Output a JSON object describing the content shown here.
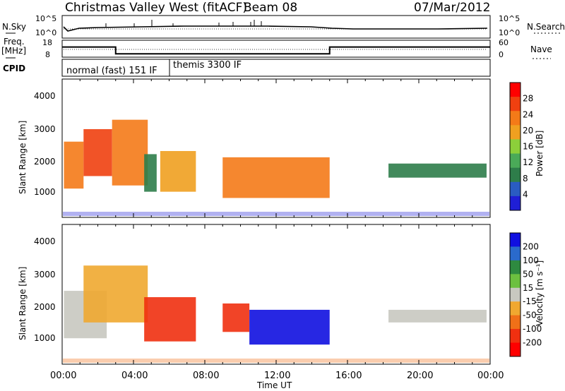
{
  "header": {
    "title": "Christmas Valley West (fitACF)",
    "beam": "Beam 08",
    "date": "07/Mar/2012"
  },
  "noise_panel": {
    "left_label": "N.Sky",
    "right_label": "N.Search",
    "left_ticks": [
      "10^5",
      "10^0"
    ],
    "right_ticks": [
      "10^5",
      "10^0"
    ]
  },
  "freq_panel": {
    "left_label_1": "Freq.",
    "left_label_2": "[MHz]",
    "right_label": "Nave",
    "left_ticks": [
      "18",
      "8"
    ],
    "right_ticks": [
      "60",
      "0"
    ]
  },
  "cpid_panel": {
    "label": "CPID",
    "modes": [
      {
        "label": "normal (fast) 151 IF",
        "start_hour": 0,
        "end_hour": 6
      },
      {
        "label": "themis 3300 IF",
        "start_hour": 6,
        "end_hour": 24
      }
    ]
  },
  "power_panel": {
    "ylabel": "Slant Range [km]",
    "yticks": [
      "4000",
      "3000",
      "2000",
      "1000"
    ],
    "colorbar_label": "Power [dB]",
    "colorbar_ticks": [
      "28",
      "24",
      "20",
      "16",
      "12",
      "8",
      "4"
    ],
    "colors": [
      "#1f1fd6",
      "#2a5cc2",
      "#2e7d4a",
      "#4aaa58",
      "#8ccf3a",
      "#f0a020",
      "#f47a18",
      "#f04010",
      "#ff0000"
    ]
  },
  "velocity_panel": {
    "ylabel": "Slant Range [km]",
    "yticks": [
      "4000",
      "3000",
      "2000",
      "1000"
    ],
    "colorbar_label": "Velocity [m s⁻¹]",
    "colorbar_ticks": [
      "200",
      "100",
      "50",
      "15",
      "-15",
      "-50",
      "-100",
      "-200"
    ],
    "colors": [
      "#1010e0",
      "#2a6acc",
      "#2e8a40",
      "#6cc040",
      "#c8c8c0",
      "#f0a830",
      "#f07018",
      "#f03010",
      "#ff0000"
    ]
  },
  "x_axis": {
    "label": "Time UT",
    "ticks": [
      "00:00",
      "04:00",
      "08:00",
      "12:00",
      "16:00",
      "20:00",
      "00:00"
    ]
  },
  "chart_data": {
    "type": "heatmap",
    "x_range_hours": [
      0,
      24
    ],
    "y_range_km": [
      180,
      4600
    ],
    "power_patches": [
      {
        "t0": 0.1,
        "t1": 1.2,
        "r0": 1100,
        "r1": 2600,
        "db": 22
      },
      {
        "t0": 1.2,
        "t1": 2.8,
        "r0": 1500,
        "r1": 3000,
        "db": 26
      },
      {
        "t0": 2.8,
        "t1": 4.8,
        "r0": 1200,
        "r1": 3300,
        "db": 25
      },
      {
        "t0": 4.6,
        "t1": 5.3,
        "r0": 1000,
        "r1": 2200,
        "db": 8
      },
      {
        "t0": 5.5,
        "t1": 7.5,
        "r0": 1000,
        "r1": 2300,
        "db": 18
      },
      {
        "t0": 9.0,
        "t1": 15.0,
        "r0": 800,
        "r1": 2100,
        "db": 24
      },
      {
        "t0": 18.3,
        "t1": 23.8,
        "r0": 1450,
        "r1": 1900,
        "db": 6
      }
    ],
    "velocity_patches": [
      {
        "t0": 0.1,
        "t1": 2.5,
        "r0": 1000,
        "r1": 2500,
        "v": 0
      },
      {
        "t0": 1.2,
        "t1": 4.8,
        "r0": 1500,
        "r1": 3300,
        "v": -30
      },
      {
        "t0": 4.6,
        "t1": 7.5,
        "r0": 900,
        "r1": 2300,
        "v": -200
      },
      {
        "t0": 9.0,
        "t1": 10.5,
        "r0": 1200,
        "r1": 2100,
        "v": -150
      },
      {
        "t0": 10.5,
        "t1": 15.0,
        "r0": 800,
        "r1": 1900,
        "v": 200
      },
      {
        "t0": 18.3,
        "t1": 23.8,
        "r0": 1500,
        "r1": 1900,
        "v": 0
      }
    ],
    "freq_steps": [
      {
        "t0": 0,
        "t1": 3,
        "mhz": 14
      },
      {
        "t0": 3,
        "t1": 15,
        "mhz": 10
      },
      {
        "t0": 15,
        "t1": 24,
        "mhz": 14
      }
    ]
  }
}
